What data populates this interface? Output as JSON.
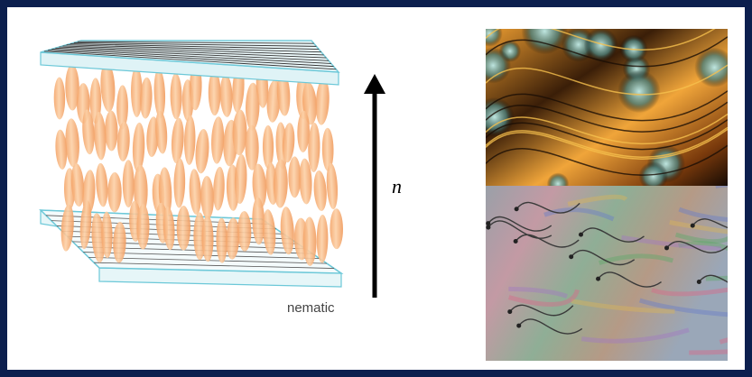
{
  "labels": {
    "phase": "nematic",
    "director": "n"
  }
}
